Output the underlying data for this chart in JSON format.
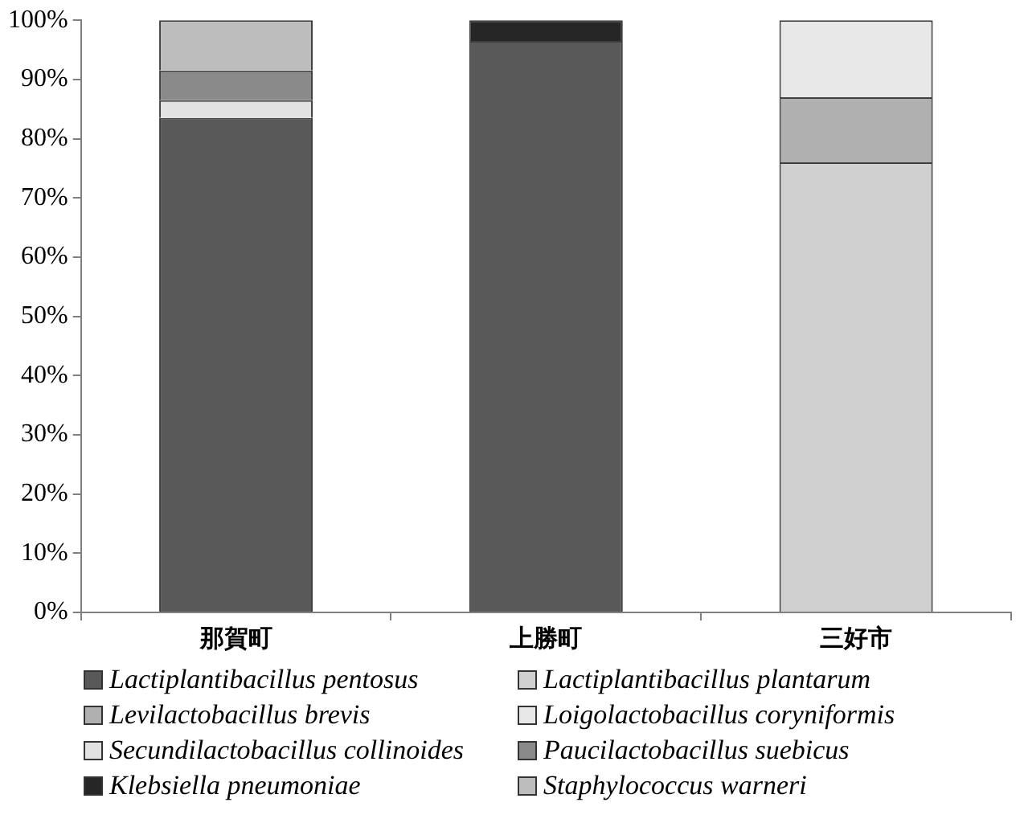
{
  "chart_data": {
    "type": "bar",
    "stacked": true,
    "categories": [
      "那賀町",
      "上勝町",
      "三好市"
    ],
    "series": [
      {
        "name": "Lactiplantibacillus pentosus",
        "color": "#595959",
        "values": [
          83.5,
          96.5,
          0
        ]
      },
      {
        "name": "Lactiplantibacillus plantarum",
        "color": "#d0d0d0",
        "values": [
          0,
          0,
          76
        ]
      },
      {
        "name": "Levilactobacillus brevis",
        "color": "#b0b0b0",
        "values": [
          0,
          0,
          11
        ]
      },
      {
        "name": "Loigolactobacillus coryniformis",
        "color": "#e8e8e8",
        "values": [
          0,
          0,
          13
        ]
      },
      {
        "name": "Secundilactobacillus collinoides",
        "color": "#e2e2e2",
        "values": [
          3,
          0,
          0
        ]
      },
      {
        "name": "Paucilactobacillus suebicus",
        "color": "#8a8a8a",
        "values": [
          5,
          0,
          0
        ]
      },
      {
        "name": "Klebsiella pneumoniae",
        "color": "#262626",
        "values": [
          0,
          3.5,
          0
        ]
      },
      {
        "name": "Staphylococcus warneri",
        "color": "#bdbdbd",
        "values": [
          8.5,
          0,
          0
        ]
      }
    ],
    "ylim": [
      0,
      100
    ],
    "yticks": [
      {
        "value": 0,
        "label": "0%"
      },
      {
        "value": 10,
        "label": "10%"
      },
      {
        "value": 20,
        "label": "20%"
      },
      {
        "value": 30,
        "label": "30%"
      },
      {
        "value": 40,
        "label": "40%"
      },
      {
        "value": 50,
        "label": "50%"
      },
      {
        "value": 60,
        "label": "60%"
      },
      {
        "value": 70,
        "label": "70%"
      },
      {
        "value": 80,
        "label": "80%"
      },
      {
        "value": 90,
        "label": "90%"
      },
      {
        "value": 100,
        "label": "100%"
      }
    ],
    "grid": false,
    "legend": "bottom"
  }
}
